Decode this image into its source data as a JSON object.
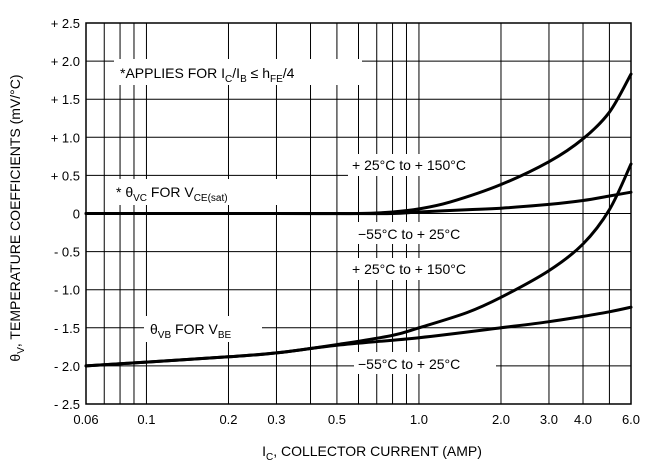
{
  "chart_data": {
    "type": "line",
    "x_scale": "log",
    "xlim": [
      0.06,
      6.0
    ],
    "ylim": [
      -2.5,
      2.5
    ],
    "x_ticks": [
      {
        "value": 0.06,
        "label": "0.06"
      },
      {
        "value": 0.1,
        "label": "0.1"
      },
      {
        "value": 0.2,
        "label": "0.2"
      },
      {
        "value": 0.3,
        "label": "0.3"
      },
      {
        "value": 0.5,
        "label": "0.5"
      },
      {
        "value": 1.0,
        "label": "1.0"
      },
      {
        "value": 2.0,
        "label": "2.0"
      },
      {
        "value": 3.0,
        "label": "3.0"
      },
      {
        "value": 4.0,
        "label": "4.0"
      },
      {
        "value": 6.0,
        "label": "6.0"
      }
    ],
    "x_grid": [
      0.06,
      0.07,
      0.08,
      0.09,
      0.1,
      0.2,
      0.3,
      0.4,
      0.5,
      0.6,
      0.7,
      0.8,
      0.9,
      1.0,
      2.0,
      3.0,
      4.0,
      5.0,
      6.0
    ],
    "y_ticks": [
      {
        "value": 2.5,
        "label": "+ 2.5"
      },
      {
        "value": 2.0,
        "label": "+ 2.0"
      },
      {
        "value": 1.5,
        "label": "+ 1.5"
      },
      {
        "value": 1.0,
        "label": "+ 1.0"
      },
      {
        "value": 0.5,
        "label": "+ 0.5"
      },
      {
        "value": 0,
        "label": "0"
      },
      {
        "value": -0.5,
        "label": "- 0.5"
      },
      {
        "value": -1.0,
        "label": "- 1.0"
      },
      {
        "value": -1.5,
        "label": "- 1.5"
      },
      {
        "value": -2.0,
        "label": "- 2.0"
      },
      {
        "value": -2.5,
        "label": "- 2.5"
      }
    ],
    "grid": true,
    "xlabel": {
      "main": "I",
      "sub": "C",
      "rest": ", COLLECTOR CURRENT (AMP)"
    },
    "ylabel": {
      "main": "θ",
      "sub": "V",
      "rest": ", TEMPERATURE COEFFICIENTS (mV/°C)"
    },
    "series": [
      {
        "name": "θVC for VCE(sat), +25°C to +150°C",
        "points": [
          [
            0.06,
            0.0
          ],
          [
            0.3,
            0.0
          ],
          [
            0.6,
            0.0
          ],
          [
            0.8,
            0.02
          ],
          [
            1.0,
            0.06
          ],
          [
            1.3,
            0.15
          ],
          [
            2.0,
            0.38
          ],
          [
            3.0,
            0.68
          ],
          [
            4.0,
            0.98
          ],
          [
            5.0,
            1.33
          ],
          [
            6.0,
            1.83
          ]
        ]
      },
      {
        "name": "θVC for VCE(sat), -55°C to +25°C",
        "points": [
          [
            0.06,
            0.0
          ],
          [
            0.5,
            0.0
          ],
          [
            0.8,
            0.0
          ],
          [
            1.0,
            0.02
          ],
          [
            1.5,
            0.05
          ],
          [
            2.0,
            0.07
          ],
          [
            3.0,
            0.12
          ],
          [
            4.0,
            0.17
          ],
          [
            5.0,
            0.23
          ],
          [
            6.0,
            0.28
          ]
        ]
      },
      {
        "name": "θVB for VBE, +25°C to +150°C",
        "points": [
          [
            0.06,
            -2.0
          ],
          [
            0.1,
            -1.95
          ],
          [
            0.2,
            -1.88
          ],
          [
            0.3,
            -1.83
          ],
          [
            0.5,
            -1.72
          ],
          [
            0.8,
            -1.6
          ],
          [
            1.0,
            -1.5
          ],
          [
            1.5,
            -1.3
          ],
          [
            2.0,
            -1.1
          ],
          [
            3.0,
            -0.75
          ],
          [
            4.0,
            -0.4
          ],
          [
            5.0,
            0.05
          ],
          [
            6.0,
            0.65
          ]
        ]
      },
      {
        "name": "θVB for VBE, -55°C to +25°C",
        "points": [
          [
            0.06,
            -2.0
          ],
          [
            0.1,
            -1.95
          ],
          [
            0.2,
            -1.88
          ],
          [
            0.3,
            -1.83
          ],
          [
            0.5,
            -1.73
          ],
          [
            1.0,
            -1.63
          ],
          [
            2.0,
            -1.5
          ],
          [
            3.0,
            -1.42
          ],
          [
            4.0,
            -1.35
          ],
          [
            5.0,
            -1.29
          ],
          [
            6.0,
            -1.23
          ]
        ]
      }
    ],
    "annotations": {
      "applies": {
        "t1": "*APPLIES FOR I",
        "s1": "C",
        "t2": "/I",
        "s2": "B",
        "t3": " ≤ h",
        "s3": "FE",
        "t4": "/4"
      },
      "theta_vc": {
        "t1": "* θ",
        "s1": "VC",
        "t2": " FOR V",
        "s2": "CE(sat)"
      },
      "theta_vb": {
        "t1": "θ",
        "s1": "VB",
        "t2": " FOR V",
        "s2": "BE"
      },
      "vc_hot": "+ 25°C to + 150°C",
      "vc_cold": "−55°C to + 25°C",
      "vb_hot": "+ 25°C to + 150°C",
      "vb_cold": "−55°C to + 25°C"
    }
  }
}
